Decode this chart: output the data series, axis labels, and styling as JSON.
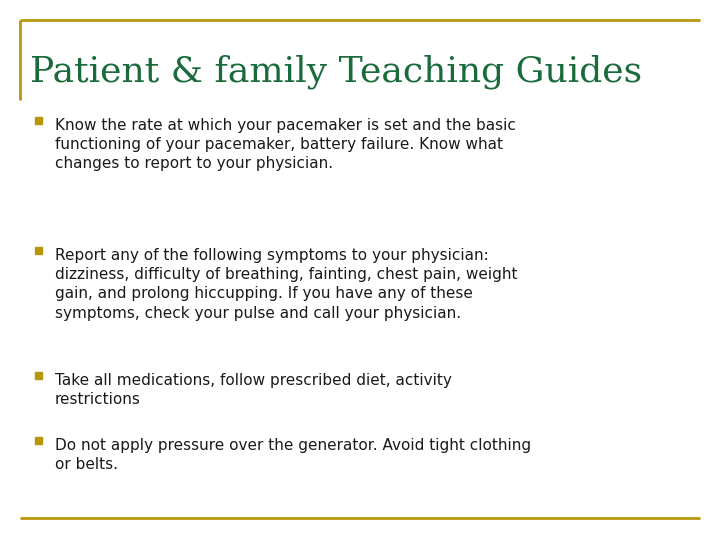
{
  "title": "Patient & family Teaching Guides",
  "title_color": "#1a6b3c",
  "title_fontsize": 26,
  "background_color": "#ffffff",
  "border_color": "#b8960c",
  "bullet_color": "#b8960c",
  "text_color": "#1a1a1a",
  "bullet_points": [
    "Know the rate at which your pacemaker is set and the basic\nfunctioning of your pacemaker, battery failure. Know what\nchanges to report to your physician.",
    "Report any of the following symptoms to your physician:\ndizziness, difficulty of breathing, fainting, chest pain, weight\ngain, and prolong hiccupping. If you have any of these\nsymptoms, check your pulse and call your physician.",
    "Take all medications, follow prescribed diet, activity\nrestrictions",
    "Do not apply pressure over the generator. Avoid tight clothing\nor belts."
  ],
  "text_fontsize": 11,
  "figsize": [
    7.2,
    5.4
  ],
  "dpi": 100
}
